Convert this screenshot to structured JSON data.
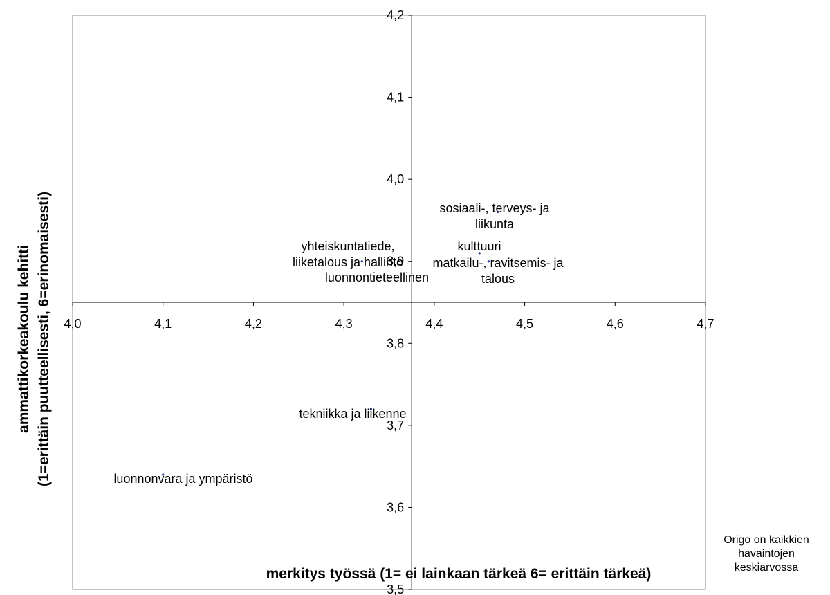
{
  "chart_data": {
    "type": "scatter",
    "xlabel": "merkitys työssä (1= ei lainkaan tärkeä  6= erittäin tärkeä)",
    "ylabel": [
      "ammattikorkeakoulu kehitti",
      "(1=erittäin puutteellisesti, 6=erinomaisesti)"
    ],
    "xlim": [
      4.0,
      4.7
    ],
    "ylim": [
      3.5,
      4.2
    ],
    "x_ticks": [
      "4,0",
      "4,1",
      "4,2",
      "4,3",
      "4,4",
      "4,5",
      "4,6",
      "4,7"
    ],
    "y_ticks": [
      "3,5",
      "3,6",
      "3,7",
      "3,8",
      "3,9",
      "4,0",
      "4,1",
      "4,2"
    ],
    "crossing": {
      "x": 4.375,
      "y": 3.85
    },
    "grid": false,
    "points": [
      {
        "label": [
          "sosiaali-, terveys- ja",
          "liikunta"
        ],
        "x": 4.47,
        "y": 3.96
      },
      {
        "label": [
          "kulttuuri"
        ],
        "x": 4.45,
        "y": 3.91
      },
      {
        "label": [
          "matkailu-, ravitsemis- ja",
          "talous"
        ],
        "x": 4.46,
        "y": 3.9
      },
      {
        "label": [
          "yhteiskuntatiede,",
          "liiketalous ja hallinto"
        ],
        "x": 4.32,
        "y": 3.9
      },
      {
        "label": [
          "luonnontieteellinen"
        ],
        "x": 4.35,
        "y": 3.88
      },
      {
        "label": [
          "tekniikka ja liikenne"
        ],
        "x": 4.33,
        "y": 3.72
      },
      {
        "label": [
          "luonnonvara ja ympäristö"
        ],
        "x": 4.1,
        "y": 3.64
      }
    ],
    "note": [
      "Origo on kaikkien",
      "havaintojen",
      "keskiarvossa"
    ]
  }
}
